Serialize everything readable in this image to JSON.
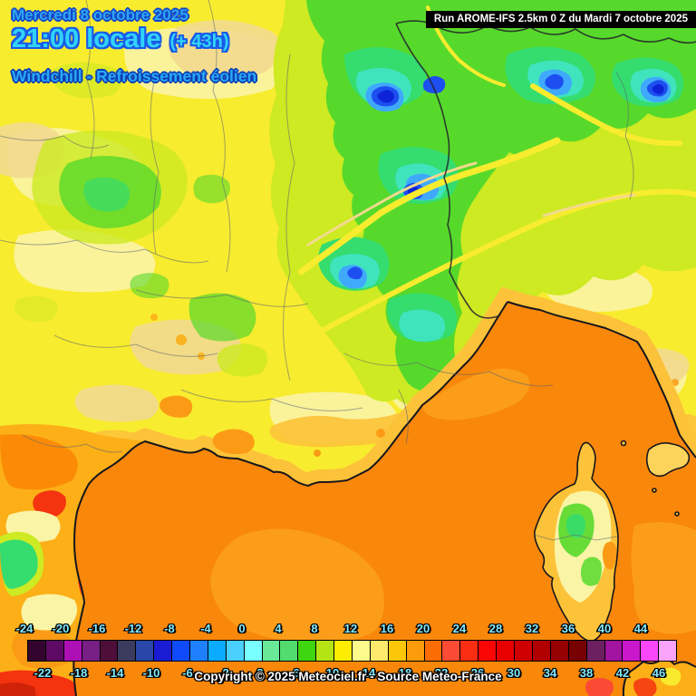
{
  "header": {
    "date_line": "Mercredi 8 octobre 2025",
    "time_line": "21:00 locale",
    "time_offset": "(+ 43h)",
    "subtitle": "Windchill - Refroissement éolien",
    "run_info": "Run AROME-IFS 2.5km 0 Z du Mardi 7 octobre 2025"
  },
  "footer": {
    "copyright": "Copyright © 2025 Meteociel.fr - Source Meteo-France"
  },
  "scale": {
    "top_labels": [
      "-24",
      "-20",
      "-16",
      "-12",
      "-8",
      "-4",
      "0",
      "4",
      "8",
      "12",
      "16",
      "20",
      "24",
      "28",
      "32",
      "36",
      "40",
      "44"
    ],
    "bottom_labels": [
      "-22",
      "-18",
      "-14",
      "-10",
      "-6",
      "-2",
      "2",
      "6",
      "10",
      "14",
      "18",
      "22",
      "26",
      "30",
      "34",
      "38",
      "42",
      "46"
    ],
    "cells": [
      {
        "value": -24,
        "color": "#33052e"
      },
      {
        "value": -22,
        "color": "#5e0a64"
      },
      {
        "value": -20,
        "color": "#ac10b4"
      },
      {
        "value": -18,
        "color": "#771f84"
      },
      {
        "value": -16,
        "color": "#4e0e3a"
      },
      {
        "value": -14,
        "color": "#3b3b5e"
      },
      {
        "value": -12,
        "color": "#2847a8"
      },
      {
        "value": -10,
        "color": "#1a1cd4"
      },
      {
        "value": -8,
        "color": "#0f4bfb"
      },
      {
        "value": -6,
        "color": "#1e80ff"
      },
      {
        "value": -4,
        "color": "#0babff"
      },
      {
        "value": -2,
        "color": "#4bd0fe"
      },
      {
        "value": 0,
        "color": "#79ffff"
      },
      {
        "value": 2,
        "color": "#69e997"
      },
      {
        "value": 4,
        "color": "#52db6e"
      },
      {
        "value": 6,
        "color": "#3ed60e"
      },
      {
        "value": 8,
        "color": "#b5e414"
      },
      {
        "value": 10,
        "color": "#fdee00"
      },
      {
        "value": 12,
        "color": "#fdfb8b"
      },
      {
        "value": 14,
        "color": "#fde96b"
      },
      {
        "value": 16,
        "color": "#fdc709"
      },
      {
        "value": 18,
        "color": "#fc9c0a"
      },
      {
        "value": 20,
        "color": "#fb6d03"
      },
      {
        "value": 22,
        "color": "#fb4b34"
      },
      {
        "value": 24,
        "color": "#fb2d12"
      },
      {
        "value": 26,
        "color": "#fb0505"
      },
      {
        "value": 28,
        "color": "#e80000"
      },
      {
        "value": 30,
        "color": "#cf0000"
      },
      {
        "value": 32,
        "color": "#b10000"
      },
      {
        "value": 34,
        "color": "#950000"
      },
      {
        "value": 36,
        "color": "#770000"
      },
      {
        "value": 38,
        "color": "#6d2060"
      },
      {
        "value": 40,
        "color": "#a2139f"
      },
      {
        "value": 42,
        "color": "#cb17cb"
      },
      {
        "value": 44,
        "color": "#fb47fb"
      },
      {
        "value": 46,
        "color": "#fba4fb"
      }
    ]
  },
  "palette": {
    "title_fill": "#2ea6f4",
    "title_outline": "#1446c8",
    "time_fill": "#30d4f9",
    "time_outline": "#1a5ae8",
    "subtitle_fill": "#28a9f4",
    "subtitle_outline": "#0e3eb5",
    "label_fill": "#85eaff",
    "copyright_fill": "#ffffff",
    "runbox_bg": "#000000",
    "runbox_fg": "#ffffff",
    "land": "#f8ec2e",
    "pale": "#faf4a6",
    "tan": "#f2da8e",
    "gold": "#fcc33a",
    "gold_deep": "#fcaf16",
    "orange_spot": "#fb9b15",
    "orange_deep": "#fb8b07",
    "green_outer": "#cdea22",
    "green_mid": "#57d92b",
    "green_bright": "#35dc6e",
    "teal": "#3fe4bd",
    "light_blue": "#3fa9fb",
    "blue": "#1d4ef0",
    "dark_blue": "#0d23d8",
    "sea": "#f8870a",
    "sea_light": "#fb9d18",
    "salmon": "#fb4b34",
    "red_spot": "#f4330f",
    "red_dark": "#d02208",
    "coast": "#16161c",
    "border_dept": "#5a6373",
    "border_nat": "#23232b"
  }
}
